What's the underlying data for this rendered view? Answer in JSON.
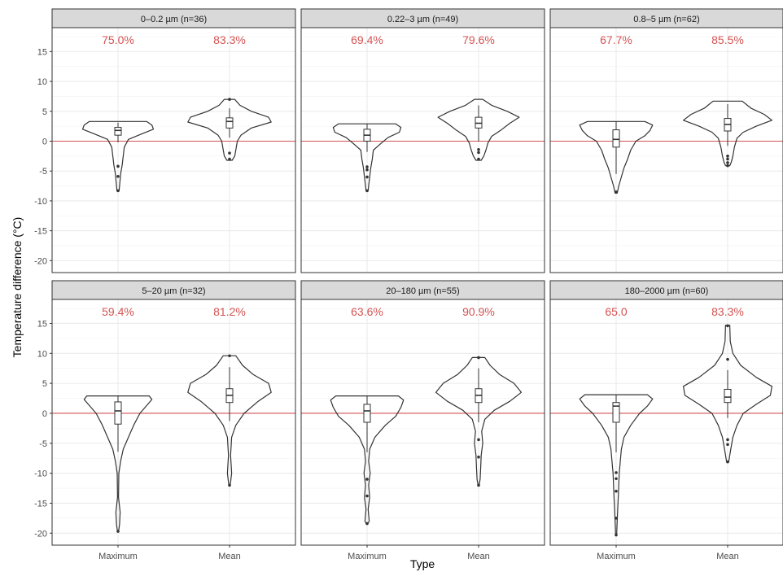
{
  "chart_data": {
    "type": "violin",
    "xlabel": "Type",
    "ylabel": "Temperature difference (°C)",
    "ylim": [
      -22,
      19
    ],
    "yticks": [
      15,
      10,
      5,
      0,
      -5,
      -10,
      -15,
      -20
    ],
    "categories": [
      "Maximum",
      "Mean"
    ],
    "reference_line": {
      "y": 0,
      "color": "#d45353"
    },
    "grid": true,
    "colors": {
      "strip_bg": "#d9d9d9",
      "annotation": "#d45353",
      "outline": "#333333",
      "grid": "#ebebeb"
    },
    "facets": [
      {
        "label": "0–0.2 µm (n=36)",
        "annotations": [
          "75.0%",
          "83.3%"
        ],
        "violins": [
          {
            "category": "Maximum",
            "max": 3.3,
            "min": -8.3,
            "density": [
              [
                3.3,
                0.55
              ],
              [
                2.7,
                0.65
              ],
              [
                2,
                0.68
              ],
              [
                1.2,
                0.45
              ],
              [
                0.3,
                0.2
              ],
              [
                -1,
                0.12
              ],
              [
                -2.5,
                0.1
              ],
              [
                -4,
                0.08
              ],
              [
                -5.5,
                0.05
              ],
              [
                -7,
                0.035
              ],
              [
                -8.3,
                0.02
              ]
            ],
            "box": {
              "q1": 1.0,
              "median": 1.8,
              "q3": 2.3,
              "w_lo": -0.2,
              "w_hi": 3.1
            },
            "outliers": [
              -4.2,
              -5.9,
              -8.3
            ]
          },
          {
            "category": "Mean",
            "max": 7.0,
            "min": -3.2,
            "density": [
              [
                7,
                0.1
              ],
              [
                6,
                0.2
              ],
              [
                5,
                0.42
              ],
              [
                4,
                0.75
              ],
              [
                3.2,
                0.8
              ],
              [
                2.2,
                0.42
              ],
              [
                1,
                0.22
              ],
              [
                0,
                0.15
              ],
              [
                -1.5,
                0.12
              ],
              [
                -2.5,
                0.1
              ],
              [
                -3.2,
                0.05
              ]
            ],
            "box": {
              "q1": 2.2,
              "median": 3.3,
              "q3": 3.9,
              "w_lo": 0.6,
              "w_hi": 5.5
            },
            "outliers": [
              -2.0,
              -3.0,
              7.0
            ]
          }
        ]
      },
      {
        "label": "0.22–3 µm (n=49)",
        "annotations": [
          "69.4%",
          "79.6%"
        ],
        "violins": [
          {
            "category": "Maximum",
            "max": 2.9,
            "min": -8.3,
            "density": [
              [
                2.9,
                0.55
              ],
              [
                2.3,
                0.65
              ],
              [
                1.5,
                0.62
              ],
              [
                0.6,
                0.4
              ],
              [
                -0.5,
                0.25
              ],
              [
                -1.5,
                0.12
              ],
              [
                -3,
                0.1
              ],
              [
                -4.5,
                0.07
              ],
              [
                -6,
                0.05
              ],
              [
                -7.5,
                0.03
              ],
              [
                -8.3,
                0.02
              ]
            ],
            "box": {
              "q1": 0.0,
              "median": 1.0,
              "q3": 2.0,
              "w_lo": -1.8,
              "w_hi": 2.9
            },
            "outliers": [
              -4.3,
              -4.8,
              -6.0,
              -8.3
            ]
          },
          {
            "category": "Mean",
            "max": 7.0,
            "min": -3.2,
            "density": [
              [
                7,
                0.08
              ],
              [
                6,
                0.25
              ],
              [
                5,
                0.55
              ],
              [
                4,
                0.78
              ],
              [
                3,
                0.6
              ],
              [
                1.8,
                0.42
              ],
              [
                0.8,
                0.25
              ],
              [
                -0.3,
                0.18
              ],
              [
                -1.5,
                0.14
              ],
              [
                -2.5,
                0.1
              ],
              [
                -3.2,
                0.05
              ]
            ],
            "box": {
              "q1": 2.2,
              "median": 3.0,
              "q3": 4.0,
              "w_lo": 0.0,
              "w_hi": 6.0
            },
            "outliers": [
              -1.4,
              -1.9,
              -3.0
            ]
          }
        ]
      },
      {
        "label": "0.8–5 µm (n=62)",
        "annotations": [
          "67.7%",
          "85.5%"
        ],
        "violins": [
          {
            "category": "Maximum",
            "max": 3.3,
            "min": -8.7,
            "density": [
              [
                3.3,
                0.55
              ],
              [
                2.7,
                0.7
              ],
              [
                1.8,
                0.65
              ],
              [
                0.9,
                0.55
              ],
              [
                0,
                0.38
              ],
              [
                -1.5,
                0.28
              ],
              [
                -3,
                0.22
              ],
              [
                -4.5,
                0.15
              ],
              [
                -6,
                0.1
              ],
              [
                -7.5,
                0.05
              ],
              [
                -8.7,
                0.02
              ]
            ],
            "box": {
              "q1": -1.0,
              "median": 0.3,
              "q3": 1.9,
              "w_lo": -5.5,
              "w_hi": 3.3
            },
            "outliers": [
              -8.5
            ]
          },
          {
            "category": "Mean",
            "max": 6.7,
            "min": -4.1,
            "density": [
              [
                6.7,
                0.28
              ],
              [
                5.5,
                0.45
              ],
              [
                4.5,
                0.7
              ],
              [
                3.5,
                0.85
              ],
              [
                2.5,
                0.55
              ],
              [
                1.5,
                0.3
              ],
              [
                0.5,
                0.18
              ],
              [
                -1,
                0.13
              ],
              [
                -2.5,
                0.1
              ],
              [
                -3.5,
                0.07
              ],
              [
                -4.1,
                0.04
              ]
            ],
            "box": {
              "q1": 1.7,
              "median": 2.8,
              "q3": 3.8,
              "w_lo": -0.8,
              "w_hi": 6.2
            },
            "outliers": [
              -2.5,
              -3.0,
              -3.6,
              -4.1
            ]
          }
        ]
      },
      {
        "label": "5–20 µm (n=32)",
        "annotations": [
          "59.4%",
          "81.2%"
        ],
        "violins": [
          {
            "category": "Maximum",
            "max": 2.9,
            "min": -19.8,
            "density": [
              [
                2.9,
                0.6
              ],
              [
                2.3,
                0.65
              ],
              [
                1.3,
                0.55
              ],
              [
                0,
                0.42
              ],
              [
                -2,
                0.3
              ],
              [
                -4,
                0.2
              ],
              [
                -6,
                0.1
              ],
              [
                -8,
                0.05
              ],
              [
                -10,
                0.015
              ],
              [
                -14,
                0.01
              ],
              [
                -16.5,
                0.04
              ],
              [
                -18.5,
                0.03
              ],
              [
                -19.8,
                0.01
              ]
            ],
            "box": {
              "q1": -1.8,
              "median": 0.4,
              "q3": 1.9,
              "w_lo": -6.4,
              "w_hi": 2.9
            },
            "outliers": [
              -19.7
            ]
          },
          {
            "category": "Mean",
            "max": 9.6,
            "min": -12.0,
            "density": [
              [
                9.6,
                0.12
              ],
              [
                8,
                0.25
              ],
              [
                6.5,
                0.45
              ],
              [
                5,
                0.75
              ],
              [
                3.5,
                0.8
              ],
              [
                2,
                0.55
              ],
              [
                0,
                0.28
              ],
              [
                -2,
                0.12
              ],
              [
                -4,
                0.04
              ],
              [
                -7,
                0.02
              ],
              [
                -10,
                0.04
              ],
              [
                -11.5,
                0.02
              ],
              [
                -12,
                0.01
              ]
            ],
            "box": {
              "q1": 1.8,
              "median": 3.0,
              "q3": 4.1,
              "w_lo": -1.3,
              "w_hi": 7.7
            },
            "outliers": [
              -12.0,
              9.6
            ]
          }
        ]
      },
      {
        "label": "20–180 µm (n=55)",
        "annotations": [
          "63.6%",
          "90.9%"
        ],
        "violins": [
          {
            "category": "Maximum",
            "max": 2.9,
            "min": -18.5,
            "density": [
              [
                2.9,
                0.6
              ],
              [
                2.2,
                0.7
              ],
              [
                1,
                0.65
              ],
              [
                -0.5,
                0.55
              ],
              [
                -2,
                0.35
              ],
              [
                -4,
                0.15
              ],
              [
                -6,
                0.05
              ],
              [
                -8,
                0.03
              ],
              [
                -10,
                0.06
              ],
              [
                -12,
                0.03
              ],
              [
                -14,
                0.05
              ],
              [
                -16,
                0.02
              ],
              [
                -18,
                0.04
              ],
              [
                -18.5,
                0.01
              ]
            ],
            "box": {
              "q1": -1.5,
              "median": 0.4,
              "q3": 1.5,
              "w_lo": -6.5,
              "w_hi": 2.9
            },
            "outliers": [
              -11.0,
              -13.8,
              -18.4
            ]
          },
          {
            "category": "Mean",
            "max": 9.3,
            "min": -12.0,
            "density": [
              [
                9.3,
                0.12
              ],
              [
                8,
                0.22
              ],
              [
                6.5,
                0.4
              ],
              [
                5,
                0.68
              ],
              [
                3.5,
                0.82
              ],
              [
                2,
                0.6
              ],
              [
                0.5,
                0.3
              ],
              [
                -1,
                0.12
              ],
              [
                -3,
                0.06
              ],
              [
                -5,
                0.08
              ],
              [
                -7,
                0.05
              ],
              [
                -9,
                0.04
              ],
              [
                -11,
                0.03
              ],
              [
                -12,
                0.01
              ]
            ],
            "box": {
              "q1": 1.8,
              "median": 3.0,
              "q3": 4.1,
              "w_lo": -1.5,
              "w_hi": 7.5
            },
            "outliers": [
              -4.4,
              -7.3,
              -12.0,
              9.3
            ]
          }
        ]
      },
      {
        "label": "180–2000 µm (n=60)",
        "annotations": [
          "65.0",
          "83.3%"
        ],
        "violins": [
          {
            "category": "Maximum",
            "max": 3.1,
            "min": -20.3,
            "density": [
              [
                3.1,
                0.6
              ],
              [
                2.4,
                0.7
              ],
              [
                1.2,
                0.6
              ],
              [
                0,
                0.45
              ],
              [
                -2,
                0.28
              ],
              [
                -4,
                0.15
              ],
              [
                -6,
                0.1
              ],
              [
                -8,
                0.08
              ],
              [
                -10,
                0.06
              ],
              [
                -12,
                0.05
              ],
              [
                -14,
                0.04
              ],
              [
                -16,
                0.03
              ],
              [
                -18,
                0.02
              ],
              [
                -20.3,
                0.01
              ]
            ],
            "box": {
              "q1": -1.5,
              "median": 1.2,
              "q3": 1.8,
              "w_lo": -6.5,
              "w_hi": 3.1
            },
            "outliers": [
              -9.9,
              -10.9,
              -13.0,
              -17.5,
              -20.3
            ]
          },
          {
            "category": "Mean",
            "max": 14.7,
            "min": -8.1,
            "density": [
              [
                14.7,
                0.04
              ],
              [
                12,
                0.05
              ],
              [
                10,
                0.1
              ],
              [
                8,
                0.25
              ],
              [
                6,
                0.55
              ],
              [
                4.5,
                0.85
              ],
              [
                3,
                0.82
              ],
              [
                1.5,
                0.55
              ],
              [
                0,
                0.3
              ],
              [
                -2,
                0.18
              ],
              [
                -4,
                0.1
              ],
              [
                -6,
                0.06
              ],
              [
                -8.1,
                0.02
              ]
            ],
            "box": {
              "q1": 1.8,
              "median": 2.7,
              "q3": 4.0,
              "w_lo": -0.8,
              "w_hi": 7.2
            },
            "outliers": [
              -4.4,
              -5.2,
              -8.1,
              9.0,
              14.6
            ]
          }
        ]
      }
    ]
  }
}
